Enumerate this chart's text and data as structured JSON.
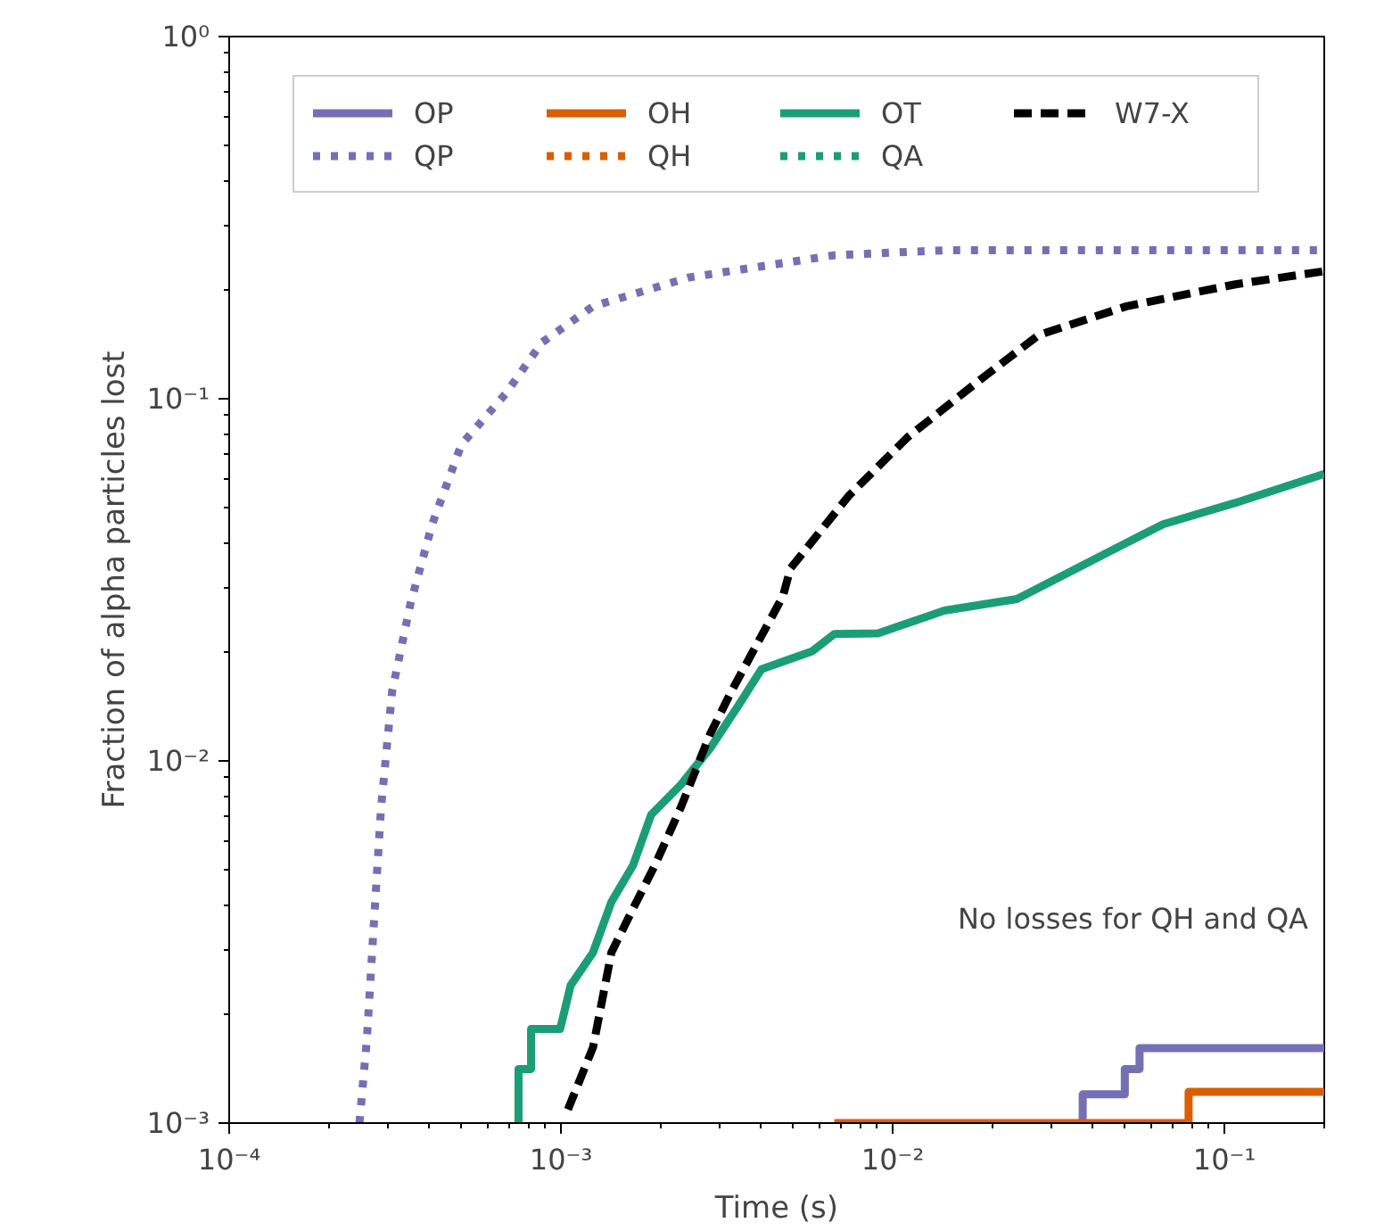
{
  "chart_data": {
    "type": "line",
    "xlabel": "Time (s)",
    "ylabel": "Fraction of alpha particles lost",
    "log": "xy",
    "xlim": [
      0.0001,
      0.2
    ],
    "ylim": [
      0.001,
      1
    ],
    "xticks": [
      {
        "value": 0.0001,
        "label": "10⁻⁴"
      },
      {
        "value": 0.001,
        "label": "10⁻³"
      },
      {
        "value": 0.01,
        "label": "10⁻²"
      },
      {
        "value": 0.1,
        "label": "10⁻¹"
      }
    ],
    "yticks": [
      {
        "value": 0.001,
        "label": "10⁻³"
      },
      {
        "value": 0.01,
        "label": "10⁻²"
      },
      {
        "value": 0.1,
        "label": "10⁻¹"
      },
      {
        "value": 1,
        "label": "10⁰"
      }
    ],
    "grid": false,
    "legend": "top",
    "annotations": [
      "No losses for QH and QA"
    ],
    "series": [
      {
        "name": "OP",
        "type": "step",
        "color": "#7570b3",
        "line_style": "solid",
        "x": [
          0.0374,
          0.0374,
          0.0501,
          0.0555,
          0.2
        ],
        "values": [
          0.001,
          0.0012,
          0.00141,
          0.00161,
          0.00161
        ]
      },
      {
        "name": "QP",
        "color": "#7570b3",
        "line_style": "dotted",
        "x": [
          0.000247,
          0.00026,
          0.000273,
          0.000287,
          0.00031,
          0.000352,
          0.000409,
          0.000501,
          0.00068,
          0.000877,
          0.00125,
          0.00242,
          0.00667,
          0.0143,
          0.2
        ],
        "values": [
          0.001,
          0.0017,
          0.00356,
          0.00745,
          0.0156,
          0.0272,
          0.045,
          0.0747,
          0.103,
          0.143,
          0.18,
          0.216,
          0.249,
          0.257,
          0.257
        ]
      },
      {
        "name": "OH",
        "type": "step",
        "color": "#d95f02",
        "line_style": "solid",
        "x": [
          0.00667,
          0.078,
          0.2
        ],
        "values": [
          0.001,
          0.00122,
          0.00122
        ]
      },
      {
        "name": "QH",
        "color": "#d95f02",
        "line_style": "dotted"
      },
      {
        "name": "OT",
        "color": "#1b9e77",
        "line_style": "solid",
        "x": [
          0.000745,
          0.000745,
          0.000813,
          0.000813,
          0.000995,
          0.00107,
          0.00125,
          0.00142,
          0.00165,
          0.00187,
          0.0023,
          0.00281,
          0.00344,
          0.00402,
          0.00573,
          0.00667,
          0.00904,
          0.0143,
          0.0237,
          0.0507,
          0.0653,
          0.108,
          0.2
        ],
        "values": [
          0.001,
          0.00141,
          0.00141,
          0.00182,
          0.00182,
          0.0024,
          0.00296,
          0.00408,
          0.00515,
          0.0071,
          0.0086,
          0.0108,
          0.0143,
          0.0179,
          0.0201,
          0.0224,
          0.0225,
          0.026,
          0.028,
          0.04,
          0.045,
          0.0516,
          0.062
        ]
      },
      {
        "name": "QA",
        "color": "#1b9e77",
        "line_style": "dotted"
      },
      {
        "name": "W7-X",
        "color": "#000000",
        "line_style": "dashed",
        "x": [
          0.00105,
          0.00125,
          0.00142,
          0.00165,
          0.00192,
          0.0023,
          0.00281,
          0.00327,
          0.00467,
          0.00492,
          0.00738,
          0.0111,
          0.0184,
          0.0276,
          0.0507,
          0.108,
          0.2
        ],
        "values": [
          0.00109,
          0.00162,
          0.00296,
          0.00391,
          0.00515,
          0.00745,
          0.0118,
          0.0156,
          0.0285,
          0.034,
          0.054,
          0.0783,
          0.113,
          0.15,
          0.18,
          0.207,
          0.225
        ]
      }
    ]
  }
}
